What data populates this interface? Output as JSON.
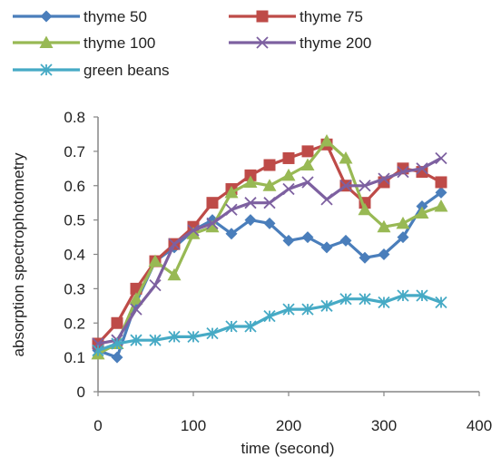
{
  "chart_data": {
    "type": "line",
    "title": "",
    "xlabel": "time (second)",
    "ylabel": "absorption spectrophotometry",
    "xlim": [
      0,
      400
    ],
    "ylim": [
      0,
      0.8
    ],
    "x_ticks": [
      "0",
      "100",
      "200",
      "300",
      "400"
    ],
    "y_ticks": [
      "0",
      "0.1",
      "0.2",
      "0.3",
      "0.4",
      "0.5",
      "0.6",
      "0.7",
      "0.8"
    ],
    "grid": false,
    "legend_position": "top",
    "x": [
      0,
      20,
      40,
      60,
      80,
      100,
      120,
      140,
      160,
      180,
      200,
      220,
      240,
      260,
      280,
      300,
      320,
      340,
      360
    ],
    "series": [
      {
        "name": "thyme 50",
        "color": "#4a7ebb",
        "marker": "diamond",
        "values": [
          0.12,
          0.1,
          0.26,
          0.38,
          0.42,
          0.47,
          0.5,
          0.46,
          0.5,
          0.49,
          0.44,
          0.45,
          0.42,
          0.44,
          0.39,
          0.4,
          0.45,
          0.54,
          0.58
        ]
      },
      {
        "name": "thyme 75",
        "color": "#be4b48",
        "marker": "square",
        "values": [
          0.14,
          0.2,
          0.3,
          0.38,
          0.43,
          0.48,
          0.55,
          0.59,
          0.63,
          0.66,
          0.68,
          0.7,
          0.72,
          0.6,
          0.55,
          0.61,
          0.65,
          0.64,
          0.61
        ]
      },
      {
        "name": "thyme 100",
        "color": "#98b954",
        "marker": "triangle",
        "values": [
          0.11,
          0.14,
          0.27,
          0.38,
          0.34,
          0.46,
          0.48,
          0.58,
          0.61,
          0.6,
          0.63,
          0.66,
          0.73,
          0.68,
          0.53,
          0.48,
          0.49,
          0.52,
          0.54
        ]
      },
      {
        "name": "thyme 200",
        "color": "#7d60a0",
        "marker": "x",
        "values": [
          0.14,
          0.15,
          0.24,
          0.31,
          0.43,
          0.47,
          0.49,
          0.53,
          0.55,
          0.55,
          0.59,
          0.61,
          0.56,
          0.6,
          0.6,
          0.62,
          0.64,
          0.65,
          0.68
        ]
      },
      {
        "name": "green beans",
        "color": "#46aac5",
        "marker": "star",
        "values": [
          0.12,
          0.14,
          0.15,
          0.15,
          0.16,
          0.16,
          0.17,
          0.19,
          0.19,
          0.22,
          0.24,
          0.24,
          0.25,
          0.27,
          0.27,
          0.26,
          0.28,
          0.28,
          0.26
        ]
      }
    ]
  }
}
